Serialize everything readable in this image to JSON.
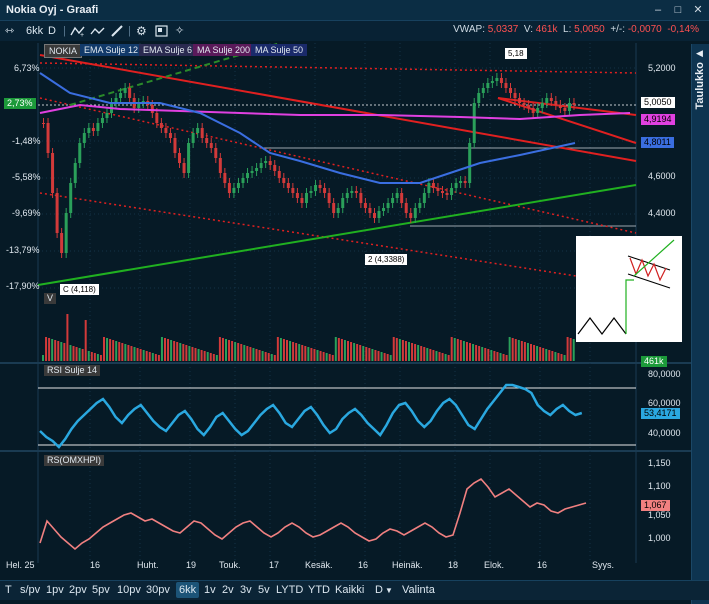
{
  "window": {
    "title": "Nokia Oyj - Graafi",
    "min": "–",
    "max": "□",
    "close": "✕"
  },
  "toolbar": {
    "cursor_icon": "⇿",
    "period": "6kk",
    "d_label": "D",
    "quote": {
      "vwap_label": "VWAP:",
      "vwap": "5,0337",
      "v_label": "V:",
      "v": "461k",
      "l_label": "L:",
      "l": "5,0050",
      "chg_label": "+/-:",
      "chg": "-0,0070",
      "chg_pct": "-0,14%"
    }
  },
  "side_tab": "Taulukko",
  "legend": {
    "ticker": "NOKIA",
    "ema12": "EMA Sulje 12",
    "ema6": "EMA Sulje 6",
    "ma200": "MA Sulje 200",
    "ma50": "MA Sulje 50"
  },
  "left_axis": [
    "6,73%",
    "2,73%",
    "-1,48%",
    "-5,58%",
    "-9,69%",
    "-13,79%",
    "-17,90%"
  ],
  "right_axis": [
    "5,2000",
    "5,0050",
    "4,9194",
    "4,8011",
    "4,6000",
    "4,4000"
  ],
  "annotations": {
    "high": "5,18",
    "low2": "2 (4,3388)",
    "lowC": "C (4,118)"
  },
  "volume": {
    "label": "V",
    "last": "461k"
  },
  "rsi": {
    "label": "RSI Sulje 14",
    "ticks": [
      "80,0000",
      "60,0000",
      "40,0000"
    ],
    "last": "53,4171"
  },
  "rs": {
    "label": "RS(OMXHPI)",
    "ticks": [
      "1,150",
      "1,100",
      "1,050",
      "1,000"
    ],
    "last": "1,067"
  },
  "x_axis": [
    "Hel. 25",
    "16",
    "Huht.",
    "19",
    "Touk.",
    "17",
    "Kesäk.",
    "16",
    "Heinäk.",
    "18",
    "Elok.",
    "16",
    "Syys."
  ],
  "bottom": {
    "t": "T",
    "items": [
      "s/pv",
      "1pv",
      "2pv",
      "5pv",
      "10pv",
      "30pv",
      "6kk",
      "1v",
      "2v",
      "3v",
      "5v",
      "LYTD",
      "YTD",
      "Kaikki",
      "D",
      "Valinta"
    ],
    "active": "6kk"
  },
  "colors": {
    "bg": "#061a26",
    "accent": "#2aa8e0",
    "down": "#d23a3a",
    "up": "#2aa05a",
    "ma200": "#e040e0",
    "ma50": "#3a6ee0",
    "trend_red": "#e02020",
    "trend_green": "#20b020"
  }
}
